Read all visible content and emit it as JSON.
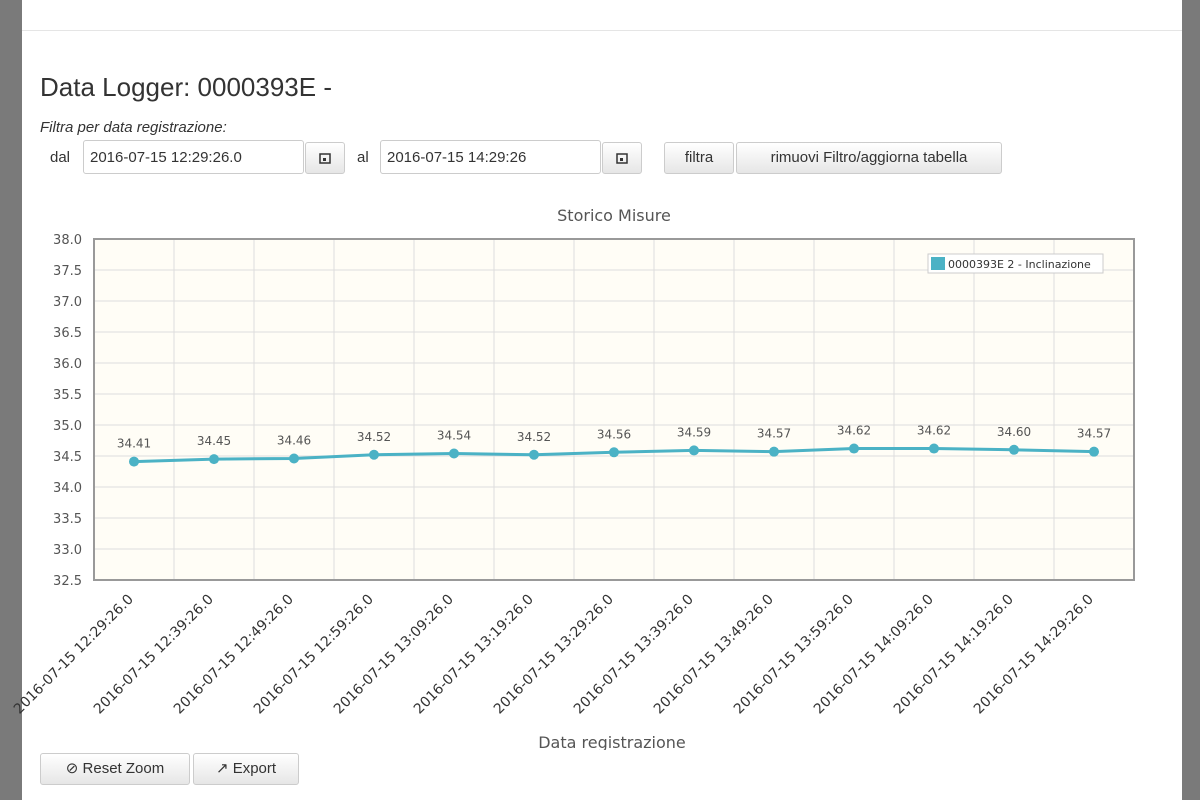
{
  "header": {
    "title": "Data Logger: 0000393E -"
  },
  "filter": {
    "label": "Filtra per data registrazione:",
    "from_label": "dal",
    "from_value": "2016-07-15 12:29:26.0",
    "to_label": "al",
    "to_value": "2016-07-15 14:29:26",
    "filter_button": "filtra",
    "reset_button": "rimuovi Filtro/aggiorna tabella"
  },
  "chart_data": {
    "type": "line",
    "title": "Storico Misure",
    "x_label": "Data registrazione",
    "categories": [
      "2016-07-15 12:29:26.0",
      "2016-07-15 12:39:26.0",
      "2016-07-15 12:49:26.0",
      "2016-07-15 12:59:26.0",
      "2016-07-15 13:09:26.0",
      "2016-07-15 13:19:26.0",
      "2016-07-15 13:29:26.0",
      "2016-07-15 13:39:26.0",
      "2016-07-15 13:49:26.0",
      "2016-07-15 13:59:26.0",
      "2016-07-15 14:09:26.0",
      "2016-07-15 14:19:26.0",
      "2016-07-15 14:29:26.0"
    ],
    "series": [
      {
        "name": "0000393E 2 - Inclinazione",
        "color": "#4bb2c5",
        "values": [
          34.41,
          34.45,
          34.46,
          34.52,
          34.54,
          34.52,
          34.56,
          34.59,
          34.57,
          34.62,
          34.62,
          34.6,
          34.57
        ],
        "value_labels": [
          "34.41",
          "34.45",
          "34.46",
          "34.52",
          "34.54",
          "34.52",
          "34.56",
          "34.59",
          "34.57",
          "34.62",
          "34.62",
          "34.60",
          "34.57"
        ]
      }
    ],
    "ylim": [
      32.5,
      38
    ],
    "yticks": [
      {
        "value": 32.5,
        "label": "32.5"
      },
      {
        "value": 33,
        "label": "33.0"
      },
      33.5,
      {
        "value": 34,
        "label": "34.0"
      },
      34.5,
      {
        "value": 35,
        "label": "35.0"
      },
      35.5,
      {
        "value": 36,
        "label": "36.0"
      },
      36.5,
      {
        "value": 37,
        "label": "37.0"
      },
      37.5,
      {
        "value": 38,
        "label": "38.0"
      }
    ],
    "grid": true,
    "legend": "top-right"
  },
  "toolbar": {
    "reset_zoom": "Reset Zoom",
    "export": "Export"
  }
}
